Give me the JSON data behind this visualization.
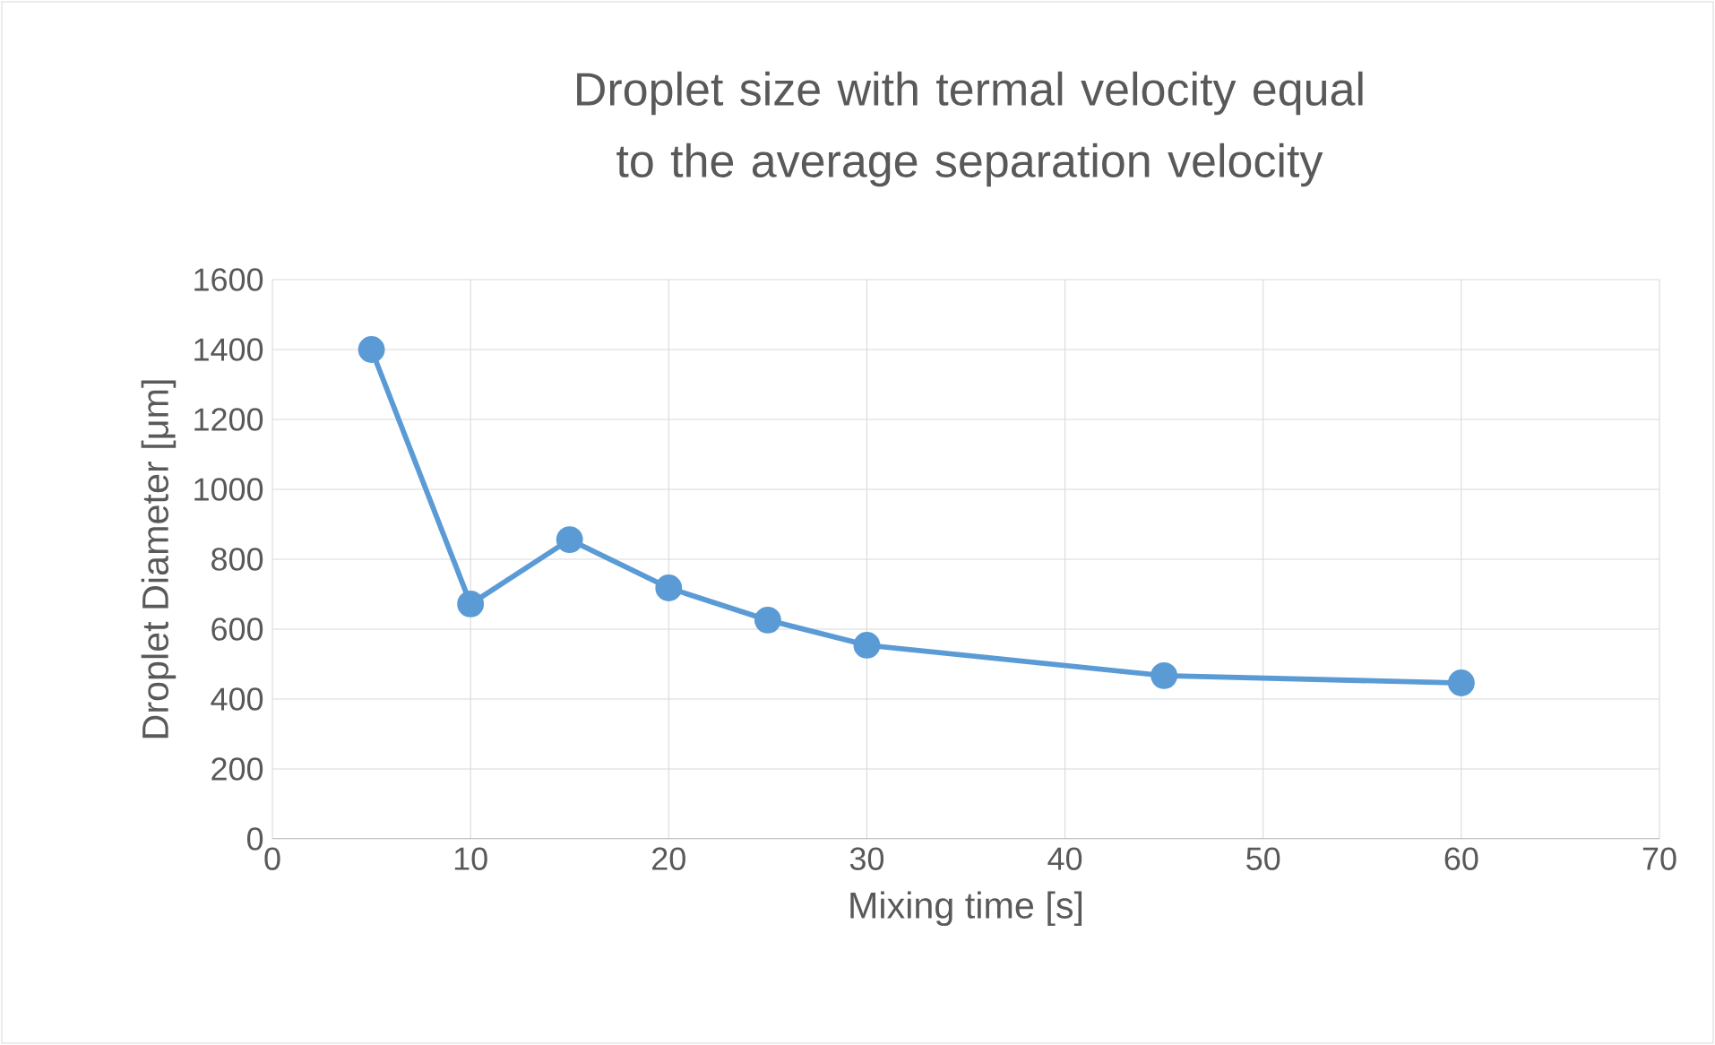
{
  "chart_data": {
    "type": "line",
    "title": "Droplet size with termal velocity equal to the average separation velocity",
    "xlabel": "Mixing time [s]",
    "ylabel": "Droplet Diameter [μm]",
    "x": [
      5,
      10,
      15,
      20,
      25,
      30,
      45,
      60
    ],
    "series": [
      {
        "color": "#5b9bd5",
        "values": [
          1400,
          672,
          856,
          718,
          626,
          554,
          467,
          446
        ]
      }
    ],
    "xlim": [
      0,
      70
    ],
    "xticks": [
      0,
      10,
      20,
      30,
      40,
      50,
      60,
      70
    ],
    "ylim": [
      0,
      1600
    ],
    "yticks": [
      0,
      200,
      400,
      600,
      800,
      1000,
      1200,
      1400,
      1600
    ],
    "grid": true,
    "marker": "circle",
    "line_style": "solid"
  }
}
